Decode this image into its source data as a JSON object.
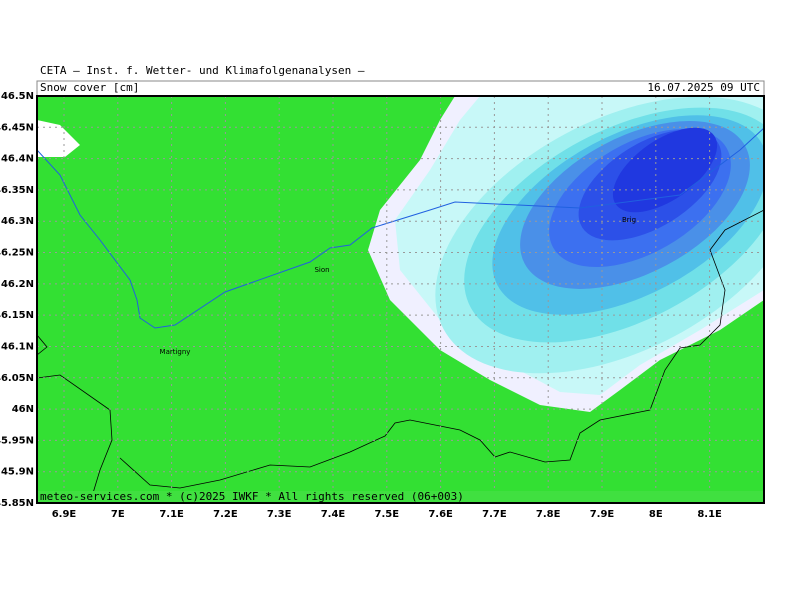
{
  "header": {
    "title": "CETA — Inst. f. Wetter- und Klimafolgenanalysen —",
    "variable": "Snow cover [cm]",
    "date": "16.07.2025 09 UTC"
  },
  "map": {
    "lat_labels": [
      "46.5N",
      "46.45N",
      "46.4N",
      "46.35N",
      "46.3N",
      "46.25N",
      "46.2N",
      "46.15N",
      "46.1N",
      "46.05N",
      "46N",
      "45.95N",
      "45.9N",
      "45.85N"
    ],
    "lon_labels": [
      "6.9E",
      "7E",
      "7.1E",
      "7.2E",
      "7.3E",
      "7.4E",
      "7.5E",
      "7.6E",
      "7.7E",
      "7.8E",
      "7.9E",
      "8E",
      "8.1E"
    ],
    "places": [
      "Sion",
      "Martigny",
      "Brig"
    ]
  },
  "footer": "meteo-services.com * (c)2025 IWKF * All rights reserved (06+003)"
}
